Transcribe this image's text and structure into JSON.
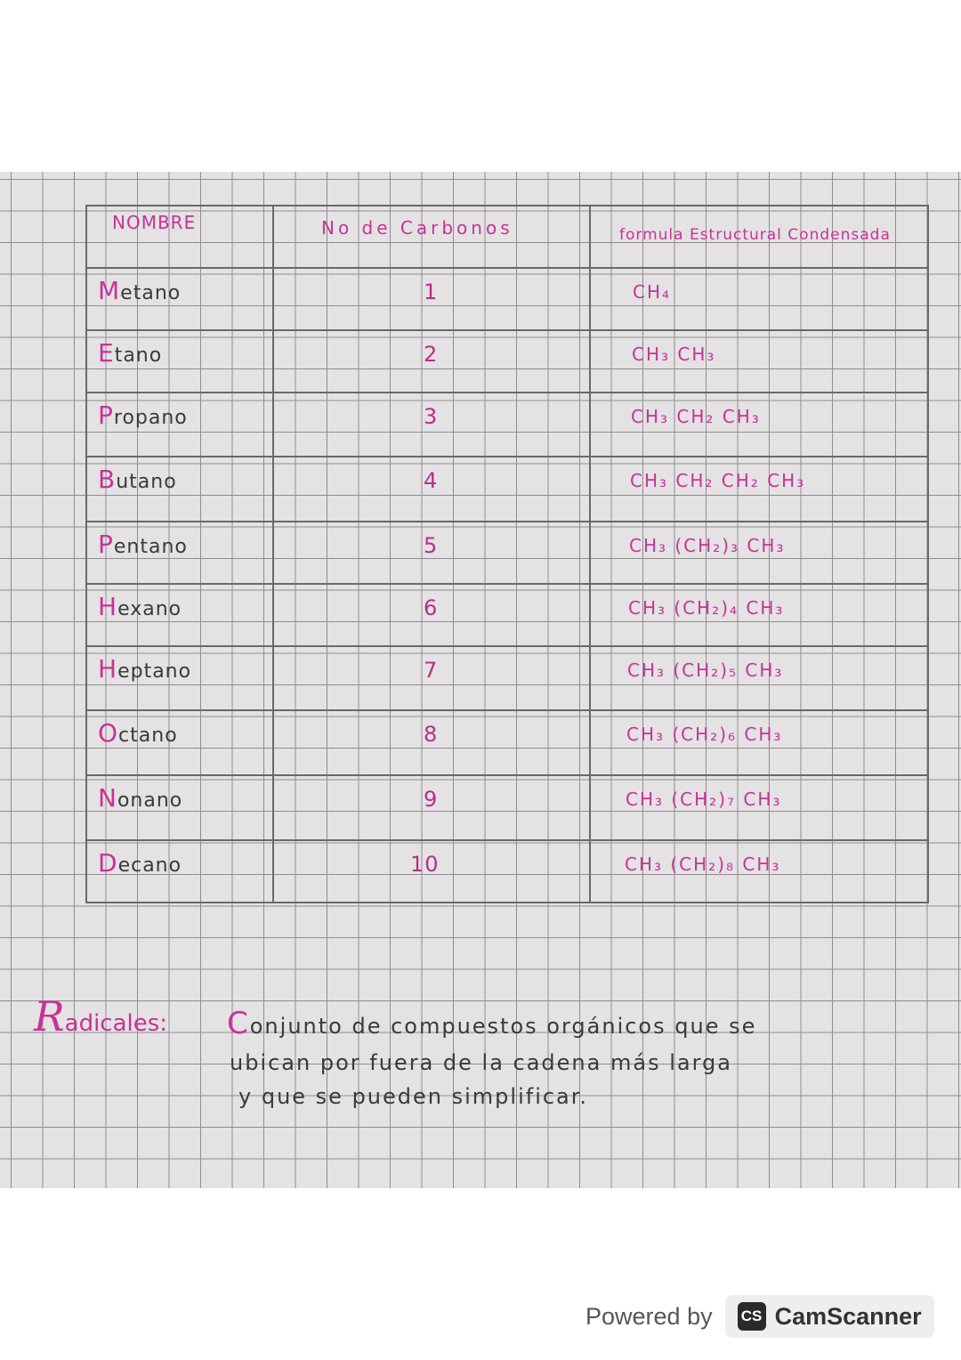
{
  "table": {
    "headers": {
      "name": "NOMBRE",
      "carbons": "No de Carbonos",
      "formula": "formula Estructural Condensada"
    },
    "rows": [
      {
        "first": "M",
        "rest": "etano",
        "carbons": "1",
        "formula": "CH₄"
      },
      {
        "first": "E",
        "rest": "tano",
        "carbons": "2",
        "formula": "CH₃ CH₃"
      },
      {
        "first": "P",
        "rest": "ropano",
        "carbons": "3",
        "formula": "CH₃  CH₂  CH₃"
      },
      {
        "first": "B",
        "rest": "utano",
        "carbons": "4",
        "formula": "CH₃  CH₂  CH₂  CH₃"
      },
      {
        "first": "P",
        "rest": "entano",
        "carbons": "5",
        "formula": "CH₃ (CH₂)₃ CH₃"
      },
      {
        "first": "H",
        "rest": "exano",
        "carbons": "6",
        "formula": "CH₃ (CH₂)₄ CH₃"
      },
      {
        "first": "H",
        "rest": "eptano",
        "carbons": "7",
        "formula": "CH₃ (CH₂)₅ CH₃"
      },
      {
        "first": "O",
        "rest": "ctano",
        "carbons": "8",
        "formula": "CH₃ (CH₂)₆ CH₃"
      },
      {
        "first": "N",
        "rest": "onano",
        "carbons": "9",
        "formula": "CH₃ (CH₂)₇ CH₃"
      },
      {
        "first": "D",
        "rest": "ecano",
        "carbons": "10",
        "formula": "CH₃ (CH₂)₈ CH₃"
      }
    ]
  },
  "definition": {
    "title_first": "R",
    "title_rest": "adicales:",
    "line1_first": "C",
    "line1_rest": "onjunto de compuestos orgánicos que se",
    "line2": "ubican por fuera de la cadena más larga",
    "line3": "y que se pueden simplificar."
  },
  "footer": {
    "powered": "Powered by",
    "logo": "CS",
    "brand": "CamScanner"
  },
  "colors": {
    "ink_pink": "#c8329a",
    "ink_pencil": "#3a3a3a",
    "paper": "#e4e2e3"
  }
}
